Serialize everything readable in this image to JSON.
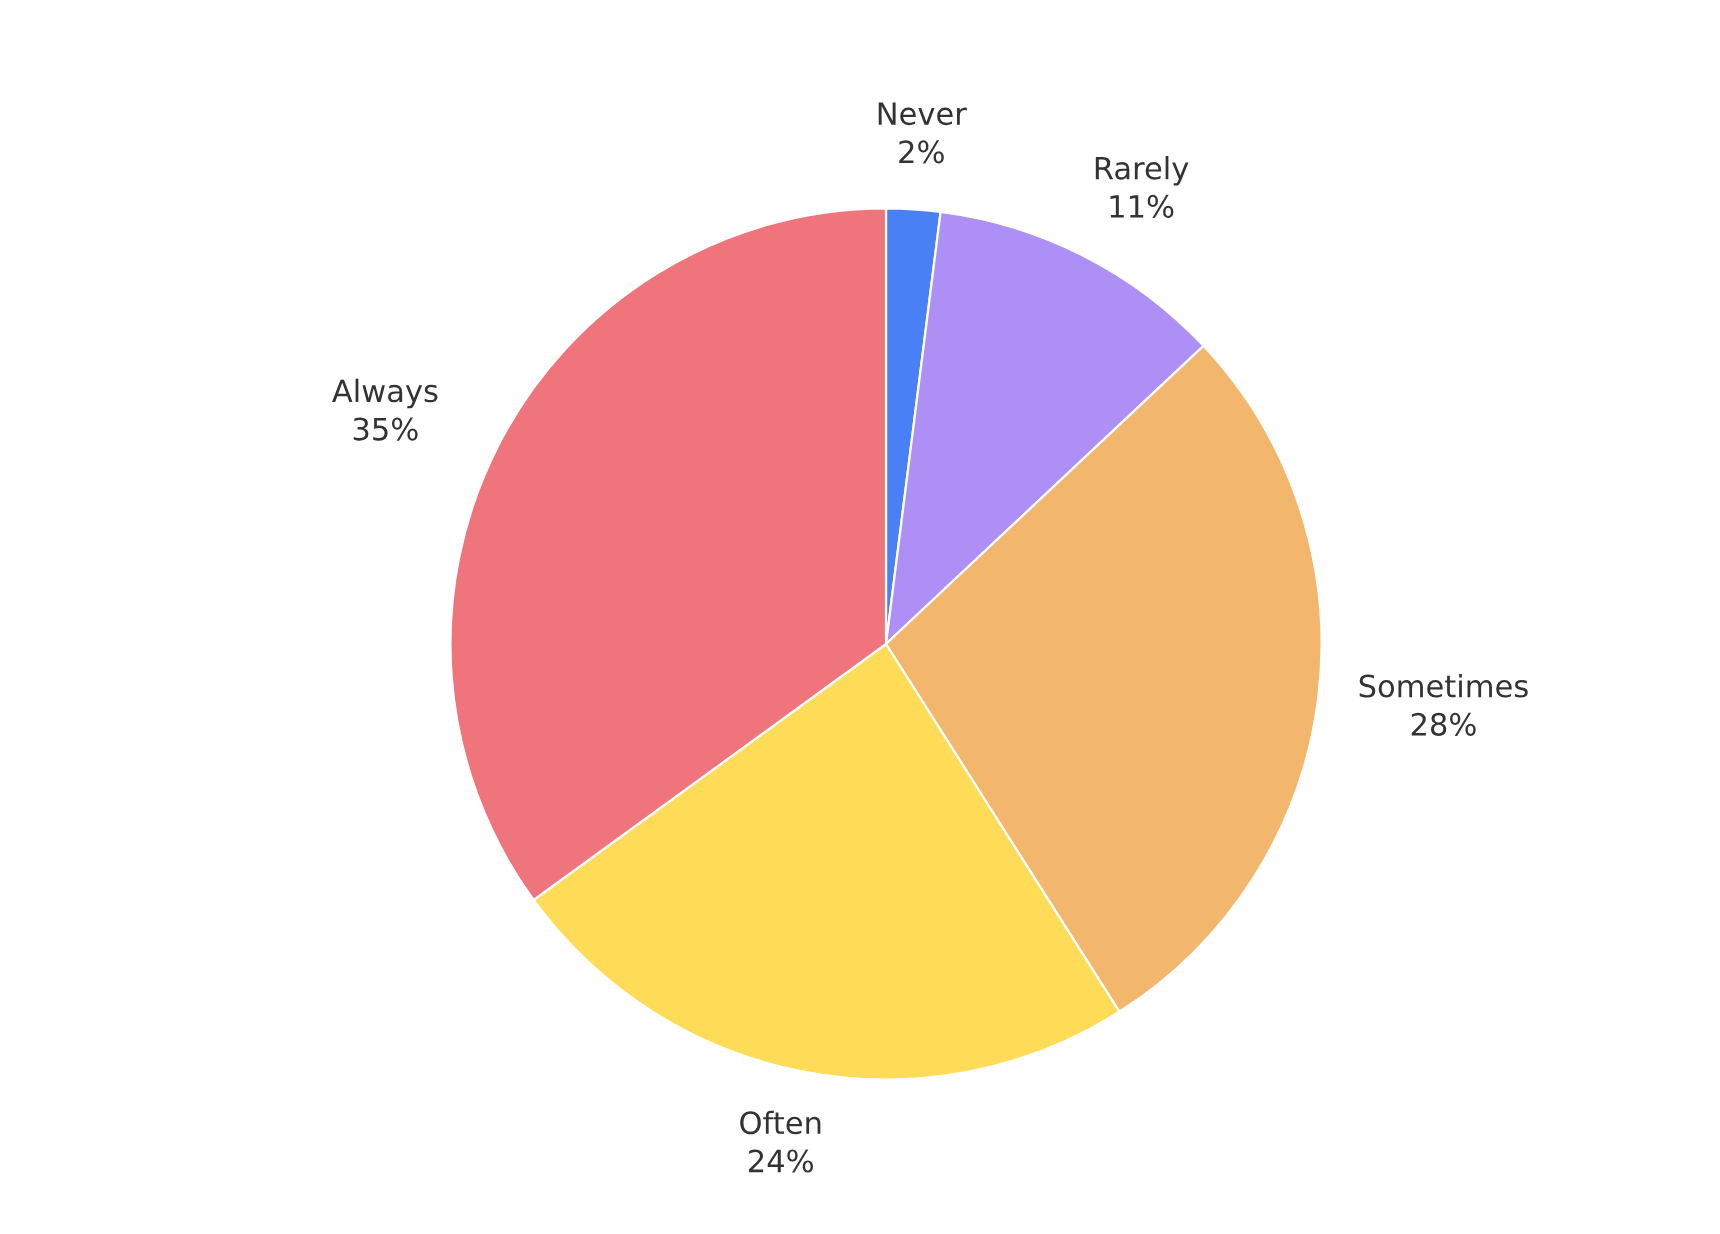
{
  "chart_data": {
    "type": "pie",
    "categories": [
      "Never",
      "Rarely",
      "Sometimes",
      "Often",
      "Always"
    ],
    "values": [
      2,
      11,
      28,
      24,
      35
    ],
    "value_labels": [
      "2%",
      "11%",
      "28%",
      "24%",
      "35%"
    ],
    "colors": [
      "#4a80f5",
      "#ae8ff5",
      "#f2b76c",
      "#ffdc57",
      "#ef747b"
    ],
    "legend": false
  }
}
